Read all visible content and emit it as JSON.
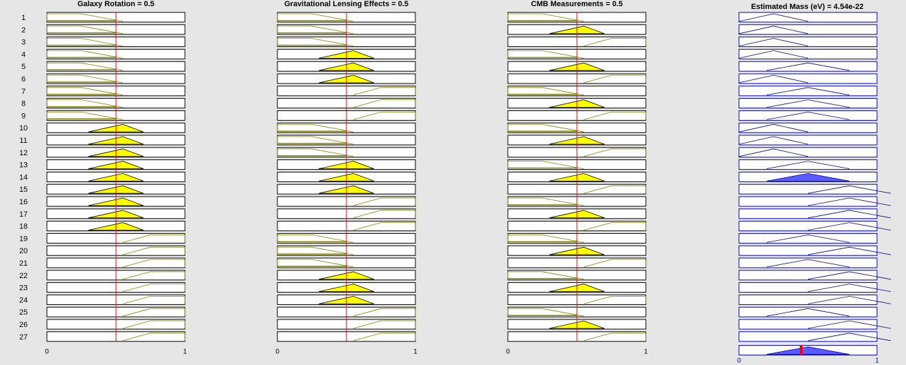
{
  "window": {
    "background": "#e6e6e6"
  },
  "colors": {
    "input_fill": "#ffff00",
    "input_line": "#808000",
    "output_fill": "#5b5bff",
    "output_line": "#0000a0",
    "box_border": "#000000",
    "output_box_border": "#0000c0",
    "cursor_line": "#ff0000",
    "box_fill": "#ffffff"
  },
  "axis_labels": {
    "min": "0",
    "max": "1"
  },
  "rule_numbers": [
    "1",
    "2",
    "3",
    "4",
    "5",
    "6",
    "7",
    "8",
    "9",
    "10",
    "11",
    "12",
    "13",
    "14",
    "15",
    "16",
    "17",
    "18",
    "19",
    "20",
    "21",
    "22",
    "23",
    "24",
    "25",
    "26",
    "27"
  ],
  "chart_data": {
    "type": "fuzzy-rule-viewer",
    "membership_functions": {
      "low": {
        "shape": "trapmf",
        "points": [
          0,
          0,
          0.25,
          0.55
        ]
      },
      "medium": {
        "shape": "trimf",
        "points": [
          0.3,
          0.55,
          0.7
        ]
      },
      "high": {
        "shape": "trapmf",
        "points": [
          0.55,
          0.75,
          1,
          1
        ]
      },
      "out_low": {
        "shape": "trimf",
        "points": [
          0,
          0.25,
          0.5
        ]
      },
      "out_medium": {
        "shape": "trimf",
        "points": [
          0.2,
          0.5,
          0.8
        ]
      },
      "out_high": {
        "shape": "trimf",
        "points": [
          0.5,
          0.8,
          1.1
        ]
      }
    },
    "inputs": [
      {
        "name": "Galaxy Rotation",
        "title": "Galaxy Rotation = 0.5",
        "value": 0.5,
        "rules": [
          "low",
          "low",
          "low",
          "low",
          "low",
          "low",
          "low",
          "low",
          "low",
          "medium",
          "medium",
          "medium",
          "medium",
          "medium",
          "medium",
          "medium",
          "medium",
          "medium",
          "high",
          "high",
          "high",
          "high",
          "high",
          "high",
          "high",
          "high",
          "high"
        ]
      },
      {
        "name": "Gravitational Lensing Effects",
        "title": "Gravitational Lensing Effects = 0.5",
        "value": 0.5,
        "rules": [
          "low",
          "low",
          "low",
          "medium",
          "medium",
          "medium",
          "high",
          "high",
          "high",
          "low",
          "low",
          "low",
          "medium",
          "medium",
          "medium",
          "high",
          "high",
          "high",
          "low",
          "low",
          "low",
          "medium",
          "medium",
          "medium",
          "high",
          "high",
          "high"
        ]
      },
      {
        "name": "CMB Measurements",
        "title": "CMB Measurements = 0.5",
        "value": 0.5,
        "rules": [
          "low",
          "medium",
          "high",
          "low",
          "medium",
          "high",
          "low",
          "medium",
          "high",
          "low",
          "medium",
          "high",
          "low",
          "medium",
          "high",
          "low",
          "medium",
          "high",
          "low",
          "medium",
          "high",
          "low",
          "medium",
          "high",
          "low",
          "medium",
          "high"
        ]
      }
    ],
    "output": {
      "name": "Estimated Mass (eV)",
      "title": "Estimated Mass (eV) = 4.54e-22",
      "value": 0.45,
      "rules": [
        "out_low",
        "out_low",
        "out_low",
        "out_low",
        "out_medium",
        "out_low",
        "out_medium",
        "out_medium",
        "out_medium",
        "out_low",
        "out_low",
        "out_low",
        "out_medium",
        "out_medium",
        "out_high",
        "out_high",
        "out_high",
        "out_high",
        "out_medium",
        "out_high",
        "out_medium",
        "out_high",
        "out_high",
        "out_high",
        "out_medium",
        "out_high",
        "out_high"
      ],
      "firing": [
        0,
        0,
        0,
        0,
        0,
        0,
        0,
        0,
        0,
        0,
        0,
        0,
        0,
        1,
        0,
        0,
        0,
        0,
        0,
        0,
        0,
        0,
        0,
        0,
        0,
        0,
        0
      ]
    },
    "xlim": [
      0,
      1
    ]
  }
}
